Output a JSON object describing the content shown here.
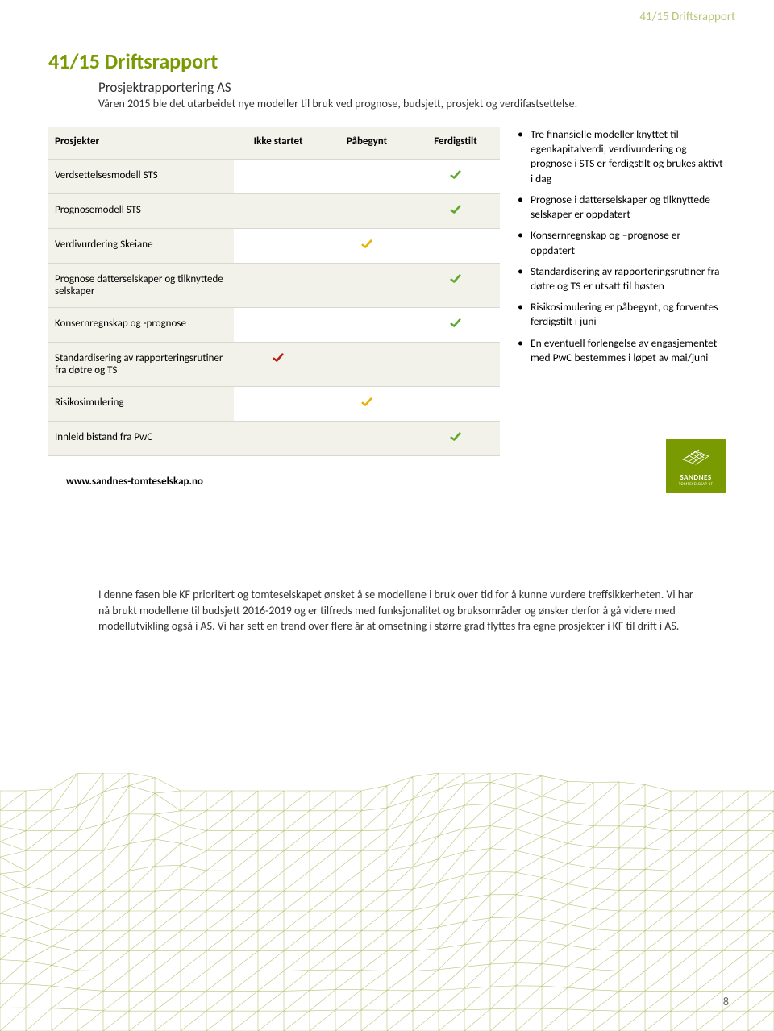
{
  "header_small": "41/15 Driftsrapport",
  "main_heading": "41/15 Driftsrapport",
  "sub_heading": "Prosjektrapportering AS",
  "intro": "Våren 2015 ble det utarbeidet nye modeller til bruk ved prognose, budsjett, prosjekt og verdifastsettelse.",
  "table": {
    "headers": [
      "Prosjekter",
      "Ikke startet",
      "Påbegynt",
      "Ferdigstilt"
    ],
    "rows": [
      {
        "name": "Verdsettelsesmodell STS",
        "ikke": "",
        "paab": "",
        "ferd": "green"
      },
      {
        "name": "Prognosemodell STS",
        "ikke": "",
        "paab": "",
        "ferd": "green"
      },
      {
        "name": "Verdivurdering Skeiane",
        "ikke": "",
        "paab": "yellow",
        "ferd": ""
      },
      {
        "name": "Prognose datterselskaper og tilknyttede selskaper",
        "ikke": "",
        "paab": "",
        "ferd": "green"
      },
      {
        "name": "Konsernregnskap og -prognose",
        "ikke": "",
        "paab": "",
        "ferd": "green"
      },
      {
        "name": "Standardisering av rapporteringsrutiner fra døtre og TS",
        "ikke": "red",
        "paab": "",
        "ferd": ""
      },
      {
        "name": "Risikosimulering",
        "ikke": "",
        "paab": "yellow",
        "ferd": ""
      },
      {
        "name": "Innleid bistand fra PwC",
        "ikke": "",
        "paab": "",
        "ferd": "green"
      }
    ],
    "check_colors": {
      "green": "#5fa82e",
      "yellow": "#e8b400",
      "red": "#b02418"
    }
  },
  "bullets": [
    "Tre finansielle modeller knyttet til egenkapitalverdi, verdivurdering og prognose i STS er ferdigstilt og brukes aktivt i dag",
    "Prognose i datterselskaper og tilknyttede selskaper er oppdatert",
    "Konsernregnskap og –prognose er oppdatert",
    "Standardisering av rapporteringsrutiner fra døtre og TS er utsatt til høsten",
    "Risikosimulering er påbegynt, og forventes ferdigstilt i juni",
    "En eventuell forlengelse av engasjementet med PwC bestemmes i løpet av mai/juni"
  ],
  "url": "www.sandnes-tomteselskap.no",
  "logo": {
    "line1": "SANDNES",
    "line2": "TOMTESELSKAP KF"
  },
  "body_para": "I denne fasen ble KF prioritert og tomteselskapet ønsket å se modellene i bruk over tid for å kunne vurdere treffsikkerheten. Vi har nå brukt modellene til budsjett 2016-2019 og er tilfreds med funksjonalitet og bruksområder og ønsker derfor å gå videre med modellutvikling også i AS. Vi har sett en trend over flere år at omsetning i større grad flyttes fra egne prosjekter i KF til drift i AS.",
  "page_num": "8",
  "terrain_color": "#b8c478"
}
